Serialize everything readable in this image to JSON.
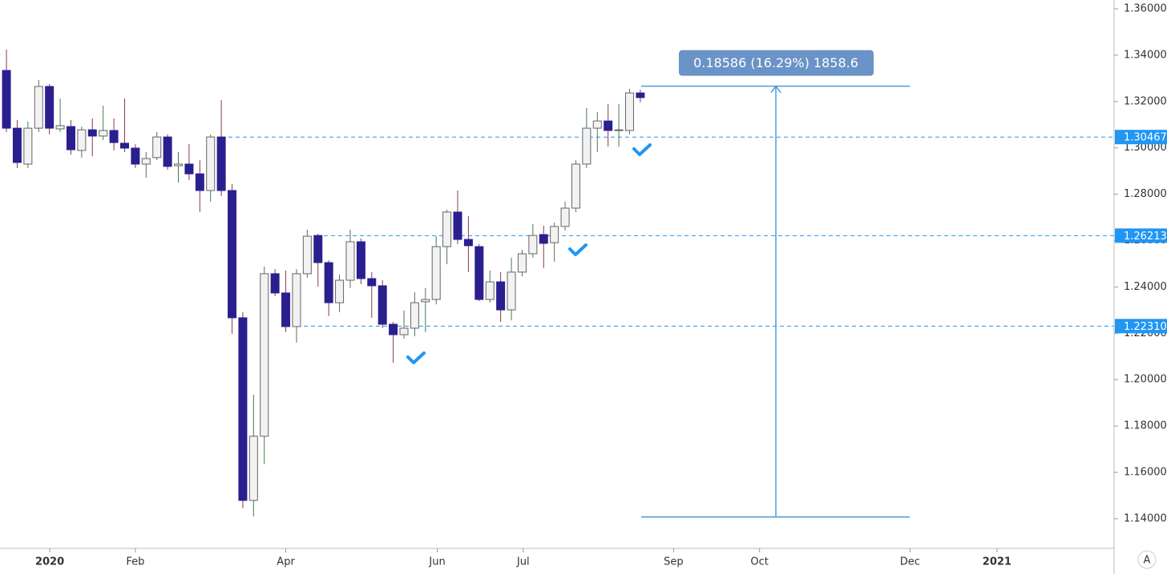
{
  "chart_data": {
    "type": "candlestick",
    "x": [
      0,
      1,
      2,
      3,
      4,
      5,
      6,
      7,
      8,
      9,
      10,
      11,
      12,
      13,
      14,
      15,
      16,
      17,
      18,
      19,
      20,
      21,
      22,
      23,
      24,
      25,
      26,
      27,
      28,
      29,
      30,
      31,
      32,
      33,
      34,
      35,
      36,
      37,
      38,
      39,
      40,
      41,
      42,
      43,
      44,
      45,
      46,
      47,
      48,
      49,
      50,
      51,
      52,
      53,
      54,
      55,
      56,
      57,
      58,
      59
    ],
    "open": [
      1.3334,
      1.3085,
      1.293,
      1.3085,
      1.3265,
      1.3082,
      1.3092,
      1.2989,
      1.3078,
      1.3051,
      1.3075,
      1.302,
      1.2999,
      1.293,
      1.2958,
      1.3047,
      1.2923,
      1.293,
      1.2888,
      1.2816,
      1.3047,
      1.2816,
      1.2267,
      1.1479,
      1.1756,
      1.2457,
      1.2374,
      1.2229,
      1.2457,
      1.2622,
      1.2505,
      1.2332,
      1.2429,
      1.2595,
      1.2436,
      1.2405,
      1.2239,
      1.2194,
      1.2222,
      1.2336,
      1.2346,
      1.2574,
      1.2723,
      1.2605,
      1.2574,
      1.2346,
      1.2422,
      1.2301,
      1.2464,
      1.2543,
      1.2626,
      1.2591,
      1.2661,
      1.274,
      1.293,
      1.3085,
      1.3116,
      1.3075,
      1.3075,
      1.3237
    ],
    "high": [
      1.3424,
      1.312,
      1.3113,
      1.3293,
      1.3275,
      1.3213,
      1.312,
      1.3092,
      1.3127,
      1.3182,
      1.3127,
      1.3213,
      1.3016,
      1.2982,
      1.3068,
      1.3058,
      1.2982,
      1.3016,
      1.2947,
      1.3058,
      1.3206,
      1.2844,
      1.2291,
      1.1935,
      1.2488,
      1.2477,
      1.2471,
      1.2477,
      1.2647,
      1.2629,
      1.2515,
      1.2453,
      1.2647,
      1.2609,
      1.2464,
      1.2429,
      1.2249,
      1.2298,
      1.2377,
      1.2395,
      1.2619,
      1.2733,
      1.2816,
      1.2705,
      1.2585,
      1.2471,
      1.2464,
      1.2526,
      1.256,
      1.2671,
      1.2664,
      1.2678,
      1.2768,
      1.2947,
      1.3172,
      1.3154,
      1.3189,
      1.3189,
      1.3255,
      1.3251
    ],
    "low": [
      1.3068,
      1.2913,
      1.2913,
      1.3068,
      1.3058,
      1.3068,
      1.2971,
      1.2958,
      1.2964,
      1.3034,
      1.2989,
      1.2982,
      1.2913,
      1.2871,
      1.2947,
      1.2906,
      1.285,
      1.2861,
      1.2723,
      1.2768,
      1.2792,
      1.2198,
      1.1445,
      1.141,
      1.1635,
      1.236,
      1.2205,
      1.216,
      1.244,
      1.2401,
      1.2274,
      1.2291,
      1.2395,
      1.2412,
      1.2267,
      1.2222,
      1.2073,
      1.2177,
      1.2187,
      1.2205,
      1.2325,
      1.2498,
      1.2585,
      1.2464,
      1.2339,
      1.2332,
      1.2249,
      1.2256,
      1.2446,
      1.2526,
      1.2481,
      1.2509,
      1.2643,
      1.2723,
      1.2913,
      1.2982,
      1.3006,
      1.3006,
      1.3058,
      1.3196
    ],
    "close": [
      1.3085,
      1.2937,
      1.3085,
      1.3265,
      1.3085,
      1.3096,
      1.2992,
      1.3078,
      1.3051,
      1.3075,
      1.3023,
      1.2999,
      1.293,
      1.2954,
      1.3047,
      1.292,
      1.293,
      1.2888,
      1.2816,
      1.3047,
      1.2816,
      1.2267,
      1.1479,
      1.1756,
      1.2457,
      1.2374,
      1.2229,
      1.2457,
      1.2619,
      1.2505,
      1.2332,
      1.2429,
      1.2595,
      1.2436,
      1.2405,
      1.2239,
      1.2194,
      1.2222,
      1.2332,
      1.2346,
      1.2574,
      1.2723,
      1.2605,
      1.2578,
      1.2346,
      1.2422,
      1.2301,
      1.2464,
      1.2543,
      1.2622,
      1.2588,
      1.2661,
      1.274,
      1.293,
      1.3085,
      1.3116,
      1.3075,
      1.3078,
      1.3237,
      1.3217
    ],
    "up_color": "#f2f2f2",
    "down_color": "#2a1f8f",
    "up_wick_color": "#4a7a4a",
    "down_wick_color": "#8a3a4a",
    "xlim": [
      -0.6,
      103.1
    ],
    "xticks": [
      {
        "value": 4.03,
        "label": "2020"
      },
      {
        "value": 12.0,
        "label": "Feb"
      },
      {
        "value": 26.0,
        "label": "Apr"
      },
      {
        "value": 40.1,
        "label": "Jun"
      },
      {
        "value": 48.1,
        "label": "Jul"
      },
      {
        "value": 62.1,
        "label": "Sep"
      },
      {
        "value": 70.1,
        "label": "Oct"
      },
      {
        "value": 84.1,
        "label": "Dec"
      },
      {
        "value": 92.2,
        "label": "2021"
      }
    ],
    "ylim": [
      1.1272,
      1.3638
    ],
    "yticks": [
      {
        "value": 1.14,
        "label": "1.14000"
      },
      {
        "value": 1.16,
        "label": "1.16000"
      },
      {
        "value": 1.18,
        "label": "1.18000"
      },
      {
        "value": 1.2,
        "label": "1.20000"
      },
      {
        "value": 1.22,
        "label": "1.22000"
      },
      {
        "value": 1.24,
        "label": "1.24000"
      },
      {
        "value": 1.26,
        "label": "1.26000"
      },
      {
        "value": 1.28,
        "label": "1.28000"
      },
      {
        "value": 1.3,
        "label": "1.30000"
      },
      {
        "value": 1.32,
        "label": "1.32000"
      },
      {
        "value": 1.34,
        "label": "1.34000"
      },
      {
        "value": 1.36,
        "label": "1.36000"
      }
    ],
    "levels": [
      1.30467,
      1.26213,
      {
        "value": 1.2231,
        "label": "1.22310"
      }
    ],
    "level_color": "#2196f3",
    "measure": {
      "start": 1.14075,
      "end": 1.32661,
      "label": "0.18586 (16.29%) 1858.6",
      "color": "#4d9bd6"
    },
    "auto_scale_button": "A"
  }
}
